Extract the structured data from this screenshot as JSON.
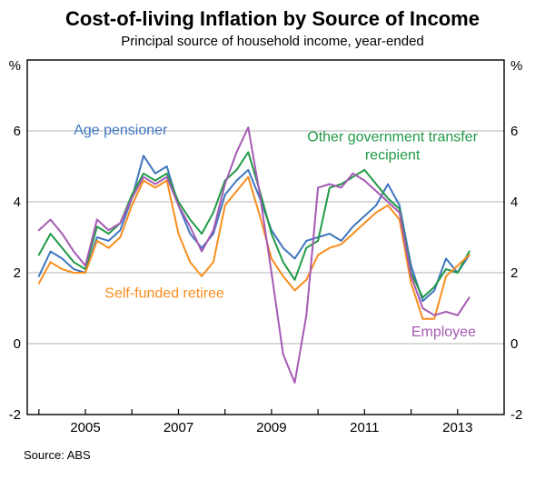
{
  "title": "Cost-of-living Inflation by Source of Income",
  "subtitle": "Principal source of household income, year-ended",
  "source": "Source: ABS",
  "chart_data": {
    "type": "line",
    "title": "Cost-of-living Inflation by Source of Income",
    "subtitle": "Principal source of household income, year-ended",
    "unit": "%",
    "xlim": [
      2003.75,
      2014.0
    ],
    "ylim": [
      -2,
      8
    ],
    "yticks": [
      6,
      4,
      2,
      0,
      -2
    ],
    "grid_values": [
      6,
      4,
      2,
      0
    ],
    "xticks": [
      2004,
      2005,
      2006,
      2007,
      2008,
      2009,
      2010,
      2011,
      2012,
      2013,
      2014
    ],
    "xtick_labels": [
      2005,
      2007,
      2009,
      2011,
      2013
    ],
    "x": [
      2004.0,
      2004.25,
      2004.5,
      2004.75,
      2005.0,
      2005.25,
      2005.5,
      2005.75,
      2006.0,
      2006.25,
      2006.5,
      2006.75,
      2007.0,
      2007.25,
      2007.5,
      2007.75,
      2008.0,
      2008.25,
      2008.5,
      2008.75,
      2009.0,
      2009.25,
      2009.5,
      2009.75,
      2010.0,
      2010.25,
      2010.5,
      2010.75,
      2011.0,
      2011.25,
      2011.5,
      2011.75,
      2012.0,
      2012.25,
      2012.5,
      2012.75,
      2013.0,
      2013.25
    ],
    "series": [
      {
        "name": "Age pensioner",
        "color": "#4076bf",
        "values": [
          1.9,
          2.6,
          2.4,
          2.1,
          2.0,
          3.0,
          2.9,
          3.2,
          4.1,
          5.3,
          4.8,
          5.0,
          3.9,
          3.1,
          2.7,
          3.1,
          4.2,
          4.6,
          4.9,
          4.1,
          3.2,
          2.7,
          2.4,
          2.9,
          3.0,
          3.1,
          2.9,
          3.3,
          3.6,
          3.9,
          4.5,
          3.9,
          2.2,
          1.2,
          1.5,
          2.4,
          2.0,
          2.5
        ]
      },
      {
        "name": "Other government transfer recipient",
        "color": "#219a46",
        "values": [
          2.5,
          3.1,
          2.7,
          2.3,
          2.1,
          3.3,
          3.1,
          3.4,
          4.2,
          4.8,
          4.6,
          4.8,
          4.0,
          3.5,
          3.1,
          3.7,
          4.6,
          4.9,
          5.4,
          4.3,
          3.1,
          2.3,
          1.8,
          2.7,
          2.9,
          4.4,
          4.5,
          4.7,
          4.9,
          4.5,
          4.1,
          3.8,
          2.0,
          1.3,
          1.6,
          2.1,
          2.0,
          2.6
        ]
      },
      {
        "name": "Self-funded retiree",
        "color": "#f78e1e",
        "values": [
          1.7,
          2.3,
          2.1,
          2.0,
          2.0,
          2.9,
          2.7,
          3.0,
          3.9,
          4.6,
          4.4,
          4.6,
          3.1,
          2.3,
          1.9,
          2.3,
          3.9,
          4.3,
          4.7,
          3.6,
          2.4,
          1.9,
          1.5,
          1.8,
          2.5,
          2.7,
          2.8,
          3.1,
          3.4,
          3.7,
          3.9,
          3.5,
          1.7,
          0.7,
          0.7,
          1.9,
          2.2,
          2.5
        ]
      },
      {
        "name": "Employee",
        "color": "#a55ab4",
        "values": [
          3.2,
          3.5,
          3.1,
          2.6,
          2.2,
          3.5,
          3.2,
          3.4,
          4.1,
          4.7,
          4.5,
          4.7,
          3.9,
          3.3,
          2.6,
          3.2,
          4.5,
          5.4,
          6.1,
          4.2,
          2.0,
          -0.3,
          -1.1,
          0.8,
          4.4,
          4.5,
          4.4,
          4.8,
          4.6,
          4.3,
          4.0,
          3.7,
          1.9,
          1.0,
          0.8,
          0.9,
          0.8,
          1.3
        ]
      }
    ],
    "annotations": [
      {
        "lines": [
          "Age pensioner"
        ],
        "x": 2004.75,
        "y": 5.9,
        "color": "#4076bf",
        "anchor": "start"
      },
      {
        "lines": [
          "Other government transfer",
          "recipient"
        ],
        "x": 2011.6,
        "y": 5.7,
        "color": "#219a46",
        "anchor": "middle"
      },
      {
        "lines": [
          "Self-funded retiree"
        ],
        "x": 2006.7,
        "y": 1.3,
        "color": "#f78e1e",
        "anchor": "middle"
      },
      {
        "lines": [
          "Employee"
        ],
        "x": 2012.7,
        "y": 0.2,
        "color": "#a55ab4",
        "anchor": "middle"
      }
    ],
    "legend_position": "inline-annotations",
    "grid": true
  }
}
